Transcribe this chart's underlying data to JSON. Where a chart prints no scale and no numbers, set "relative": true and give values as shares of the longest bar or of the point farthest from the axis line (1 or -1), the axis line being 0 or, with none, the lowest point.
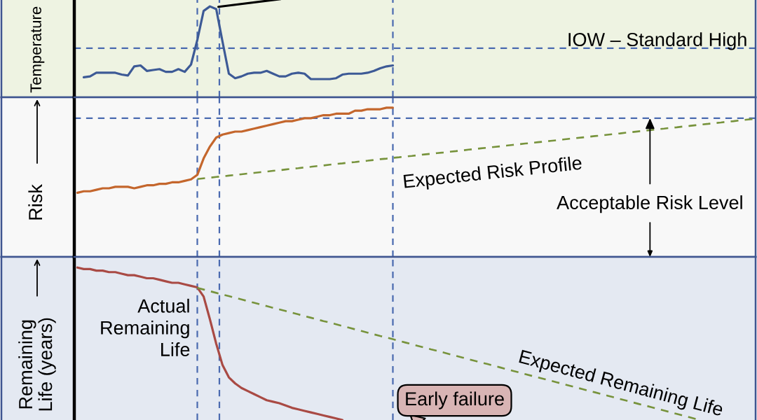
{
  "chart_data": [
    {
      "type": "line",
      "relative": true,
      "ylabel": "Temperature",
      "categories": [
        null,
        null,
        null,
        null,
        null,
        null,
        null,
        null,
        null,
        null,
        null,
        null,
        null,
        null,
        null,
        null,
        null,
        null,
        null,
        null,
        null,
        null,
        null,
        null,
        null,
        null,
        null,
        null,
        null,
        null,
        null,
        null,
        null,
        null,
        null,
        null,
        null,
        null,
        null,
        null,
        null,
        null,
        null,
        null,
        null,
        null,
        null,
        null,
        null,
        null,
        null,
        null,
        null,
        null,
        null,
        null,
        null,
        null,
        null,
        null,
        null,
        null,
        null,
        null,
        null,
        null,
        null,
        null,
        null,
        null,
        null,
        null,
        null,
        null,
        null,
        null,
        null,
        null,
        null,
        null,
        null,
        null,
        null,
        null,
        null,
        null,
        null,
        null,
        null,
        null,
        null,
        null,
        null,
        null,
        null,
        null,
        null,
        null,
        null,
        null,
        null,
        null,
        null,
        null,
        null,
        null,
        null,
        null
      ],
      "series": [
        {
          "color": "#3d5a96",
          "values": [
            null,
            0.22,
            0.23,
            0.27,
            0.27,
            0.27,
            0.27,
            0.25,
            0.24,
            0.34,
            0.35,
            0.29,
            0.3,
            0.31,
            0.28,
            0.28,
            0.31,
            0.28,
            0.36,
            0.63,
            0.95,
            1.0,
            0.97,
            0.61,
            0.26,
            0.21,
            0.23,
            0.26,
            0.27,
            0.27,
            0.29,
            0.26,
            0.23,
            0.23,
            0.26,
            0.27,
            0.26,
            0.2,
            0.2,
            0.2,
            0.2,
            0.21,
            0.25,
            0.26,
            0.26,
            0.26,
            0.27,
            0.29,
            0.32,
            0.34,
            0.35,
            null,
            null,
            null,
            null,
            null,
            null,
            null,
            null,
            null,
            null,
            null,
            null,
            null,
            null,
            null,
            null,
            null,
            null,
            null,
            null,
            null,
            null,
            null,
            null,
            null,
            null,
            null,
            null,
            null,
            null,
            null,
            null,
            null,
            null,
            null,
            null,
            null,
            null,
            null,
            null,
            null,
            null,
            null,
            null,
            null,
            null,
            null,
            null,
            null,
            null,
            null,
            null,
            null,
            null,
            null,
            null,
            null
          ]
        }
      ],
      "ref_lines": [
        {
          "axis": "y",
          "value": 0.54,
          "label": "IOW – Standard High",
          "color": "#4a6ab0",
          "line_style": "dashed"
        }
      ]
    },
    {
      "type": "line",
      "relative": true,
      "ylabel": "Risk",
      "categories": [
        null,
        null,
        null,
        null,
        null,
        null,
        null,
        null,
        null,
        null,
        null,
        null,
        null,
        null,
        null,
        null,
        null,
        null,
        null,
        null,
        null,
        null,
        null,
        null,
        null,
        null,
        null,
        null,
        null,
        null,
        null,
        null,
        null,
        null,
        null,
        null,
        null,
        null,
        null,
        null,
        null,
        null,
        null,
        null,
        null,
        null,
        null,
        null,
        null,
        null,
        null,
        null,
        null,
        null,
        null,
        null,
        null,
        null,
        null,
        null,
        null,
        null,
        null,
        null,
        null,
        null,
        null,
        null,
        null,
        null,
        null,
        null,
        null,
        null,
        null,
        null,
        null,
        null,
        null,
        null,
        null,
        null,
        null,
        null,
        null,
        null,
        null,
        null,
        null,
        null,
        null,
        null,
        null,
        null,
        null,
        null,
        null,
        null,
        null,
        null,
        null,
        null,
        null,
        null,
        null,
        null,
        null,
        null
      ],
      "series": [
        {
          "color": "#c4662c",
          "values": [
            0.43,
            0.44,
            0.44,
            0.45,
            0.46,
            0.46,
            0.47,
            0.47,
            0.47,
            0.46,
            0.47,
            0.48,
            0.48,
            0.49,
            0.49,
            0.5,
            0.5,
            0.51,
            0.52,
            0.55,
            0.66,
            0.74,
            0.8,
            0.82,
            0.83,
            0.84,
            0.84,
            0.85,
            0.86,
            0.87,
            0.88,
            0.89,
            0.9,
            0.91,
            0.91,
            0.92,
            0.93,
            0.93,
            0.94,
            0.95,
            0.95,
            0.96,
            0.96,
            0.96,
            0.98,
            0.98,
            0.99,
            0.99,
            0.99,
            1.0,
            1.0,
            null,
            null,
            null,
            null,
            null,
            null,
            null,
            null,
            null,
            null,
            null,
            null,
            null,
            null,
            null,
            null,
            null,
            null,
            null,
            null,
            null,
            null,
            null,
            null,
            null,
            null,
            null,
            null,
            null,
            null,
            null,
            null,
            null,
            null,
            null,
            null,
            null,
            null,
            null,
            null,
            null,
            null,
            null,
            null,
            null,
            null,
            null,
            null,
            null,
            null,
            null,
            null,
            null,
            null,
            null,
            null,
            null
          ]
        },
        {
          "name": "Expected Risk Profile",
          "color": "#77933c",
          "line_style": "dashed",
          "values": [
            null,
            null,
            null,
            null,
            null,
            null,
            null,
            null,
            null,
            null,
            null,
            null,
            null,
            null,
            null,
            null,
            null,
            null,
            null,
            0.522,
            0.527,
            0.531,
            0.536,
            0.54,
            0.545,
            0.549,
            0.554,
            0.559,
            0.563,
            0.568,
            0.572,
            0.577,
            0.581,
            0.586,
            0.591,
            0.595,
            0.6,
            0.604,
            0.609,
            0.613,
            0.618,
            0.623,
            0.627,
            0.632,
            0.636,
            0.641,
            0.645,
            0.65,
            0.655,
            0.659,
            0.664,
            0.668,
            0.673,
            0.677,
            0.682,
            0.687,
            0.691,
            0.696,
            0.7,
            0.705,
            0.709,
            0.714,
            0.719,
            0.723,
            0.728,
            0.732,
            0.737,
            0.741,
            0.746,
            0.751,
            0.755,
            0.76,
            0.764,
            0.769,
            0.773,
            0.778,
            0.782,
            0.787,
            0.792,
            0.796,
            0.801,
            0.805,
            0.81,
            0.814,
            0.819,
            0.824,
            0.828,
            0.833,
            0.837,
            0.842,
            0.846,
            0.851,
            0.856,
            0.86,
            0.865,
            0.869,
            0.874,
            0.878,
            0.883,
            0.888,
            0.892,
            0.897,
            0.901,
            0.906,
            0.91,
            0.915,
            0.92,
            0.924
          ]
        }
      ],
      "ref_lines": [
        {
          "axis": "y",
          "value": 0.93,
          "label": "Acceptable Risk Level",
          "color": "#4a6ab0",
          "line_style": "dashed"
        }
      ]
    },
    {
      "type": "line",
      "relative": true,
      "ylabel": "Remaining Life (years)",
      "categories": [
        null,
        null,
        null,
        null,
        null,
        null,
        null,
        null,
        null,
        null,
        null,
        null,
        null,
        null,
        null,
        null,
        null,
        null,
        null,
        null,
        null,
        null,
        null,
        null,
        null,
        null,
        null,
        null,
        null,
        null,
        null,
        null,
        null,
        null,
        null,
        null,
        null,
        null,
        null,
        null,
        null,
        null,
        null,
        null,
        null,
        null,
        null,
        null,
        null,
        null,
        null,
        null,
        null,
        null,
        null,
        null,
        null,
        null,
        null,
        null,
        null,
        null,
        null,
        null,
        null,
        null,
        null,
        null,
        null,
        null,
        null,
        null,
        null,
        null,
        null,
        null,
        null,
        null,
        null,
        null,
        null,
        null,
        null,
        null,
        null,
        null,
        null,
        null,
        null,
        null,
        null,
        null,
        null,
        null,
        null,
        null,
        null,
        null,
        null,
        null,
        null,
        null,
        null,
        null,
        null,
        null,
        null,
        null
      ],
      "series": [
        {
          "name": "Actual Remaining Life",
          "color": "#a94a44",
          "values": [
            1.0,
            0.99,
            0.99,
            0.98,
            0.98,
            0.97,
            0.97,
            0.96,
            0.95,
            0.95,
            0.94,
            0.93,
            0.93,
            0.92,
            0.91,
            0.9,
            0.9,
            0.89,
            0.88,
            0.87,
            0.81,
            0.66,
            0.5,
            0.36,
            0.28,
            0.24,
            0.21,
            0.19,
            0.17,
            0.15,
            0.13,
            0.12,
            0.11,
            0.095,
            0.08,
            0.07,
            0.06,
            0.05,
            0.04,
            0.03,
            0.02,
            0.01,
            0,
            null,
            null,
            null,
            null,
            null,
            null,
            null,
            null,
            null,
            null,
            null,
            null,
            null,
            null,
            null,
            null,
            null,
            null,
            null,
            null,
            null,
            null,
            null,
            null,
            null,
            null,
            null,
            null,
            null,
            null,
            null,
            null,
            null,
            null,
            null,
            null,
            null,
            null,
            null,
            null,
            null,
            null,
            null,
            null,
            null,
            null,
            null,
            null,
            null,
            null,
            null,
            null,
            null,
            null,
            null,
            null,
            null,
            null,
            null,
            null,
            null,
            null,
            null,
            null,
            null
          ]
        },
        {
          "name": "Expected Remaining Life",
          "color": "#77933c",
          "line_style": "dashed",
          "values": [
            null,
            null,
            null,
            null,
            null,
            null,
            null,
            null,
            null,
            null,
            null,
            null,
            null,
            null,
            null,
            null,
            null,
            null,
            null,
            0.867,
            0.856,
            0.845,
            0.834,
            0.823,
            0.813,
            0.802,
            0.791,
            0.78,
            0.769,
            0.758,
            0.747,
            0.736,
            0.726,
            0.715,
            0.704,
            0.693,
            0.682,
            0.671,
            0.66,
            0.649,
            0.639,
            0.628,
            0.617,
            0.606,
            0.595,
            0.584,
            0.573,
            0.562,
            0.551,
            0.541,
            0.53,
            0.519,
            0.508,
            0.497,
            0.486,
            0.475,
            0.464,
            0.454,
            0.443,
            0.432,
            0.421,
            0.41,
            0.399,
            0.388,
            0.377,
            0.367,
            0.356,
            0.345,
            0.334,
            0.323,
            0.312,
            0.301,
            0.29,
            0.279,
            0.269,
            0.258,
            0.247,
            0.236,
            0.225,
            0.214,
            0.203,
            0.192,
            0.182,
            0.171,
            0.16,
            0.149,
            0.138,
            0.127,
            0.116,
            0.105,
            0.095,
            0.084,
            0.073,
            0.062,
            0.051,
            0.04,
            0.029,
            0.018,
            0.007,
            null,
            null,
            null,
            null,
            null,
            null,
            null,
            null,
            null
          ]
        }
      ],
      "annotations": [
        "Early failure"
      ]
    }
  ]
}
